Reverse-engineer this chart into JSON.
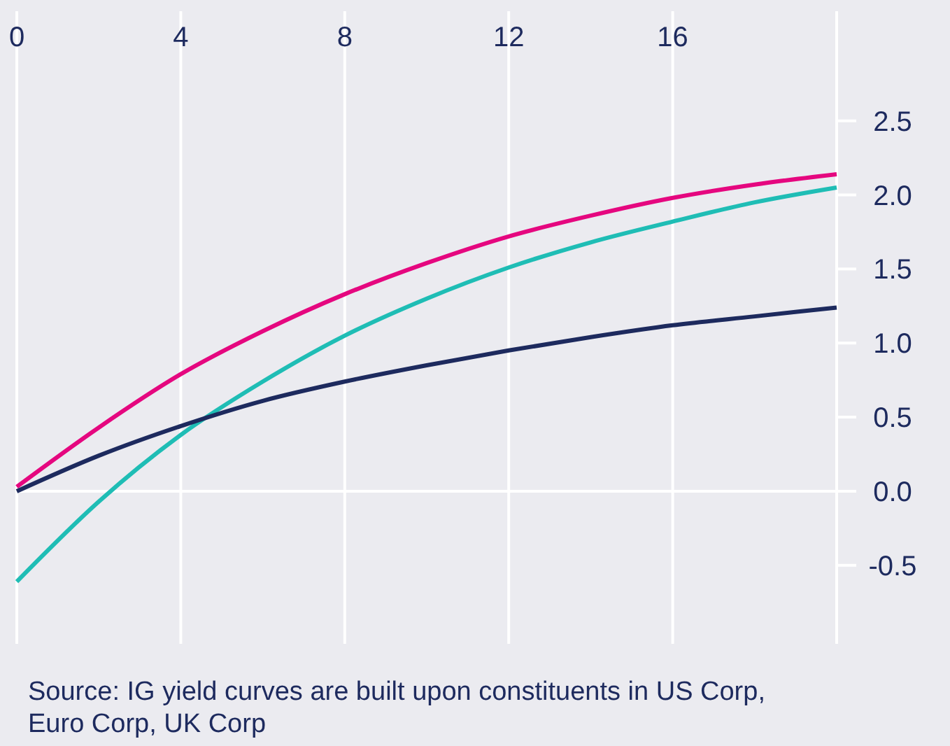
{
  "chart_data": {
    "type": "line",
    "x": [
      0,
      2,
      4,
      6,
      8,
      10,
      12,
      14,
      16,
      18,
      20
    ],
    "series": [
      {
        "color": "#e5077f",
        "values": [
          0.03,
          0.43,
          0.79,
          1.08,
          1.33,
          1.54,
          1.72,
          1.86,
          1.98,
          2.07,
          2.14
        ]
      },
      {
        "color": "#1fbdb5",
        "values": [
          -0.61,
          -0.07,
          0.38,
          0.74,
          1.05,
          1.3,
          1.51,
          1.68,
          1.82,
          1.95,
          2.05
        ]
      },
      {
        "color": "#1d2a5e",
        "values": [
          0.0,
          0.24,
          0.44,
          0.61,
          0.74,
          0.85,
          0.95,
          1.04,
          1.12,
          1.18,
          1.24
        ]
      }
    ],
    "xlim": [
      0,
      20
    ],
    "xticks": [
      0,
      4,
      8,
      12,
      16,
      {
        "value": 20,
        "label": null
      }
    ],
    "ylim": [
      -1.03,
      3.24
    ],
    "yticks": [
      {
        "value": -0.5,
        "label": "-0.5"
      },
      {
        "value": 0,
        "label": "0.0"
      },
      0.5,
      {
        "value": 1,
        "label": "1.0"
      },
      1.5,
      {
        "value": 2,
        "label": "2.0"
      },
      2.5
    ],
    "grid": "x",
    "ref_lines": [
      {
        "axis": "y",
        "value": 0
      }
    ],
    "marker": "none",
    "line_style": "solid",
    "annotations": [
      "Source: IG yield curves are built upon constituents in US Corp, Euro Corp, UK Corp"
    ]
  }
}
